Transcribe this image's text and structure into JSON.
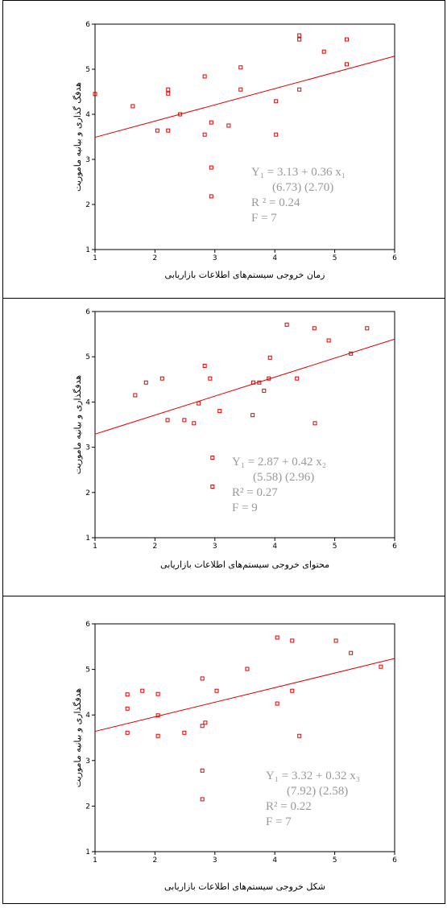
{
  "chart_data": [
    {
      "type": "scatter",
      "color": "#e00000",
      "x_label": "زمان خروجی سیستم‌های اطلاعات بازاریابی",
      "y_label": "هدفگ گذاری و بیانیه ماموریت",
      "xlim": [
        1,
        6
      ],
      "ylim": [
        1,
        6
      ],
      "xticks": [
        1,
        2,
        3,
        4,
        5,
        6
      ],
      "yticks": [
        1,
        2,
        3,
        4,
        5,
        6
      ],
      "x": [
        1.0,
        1.63,
        2.04,
        2.22,
        2.22,
        2.22,
        2.42,
        2.83,
        2.83,
        2.94,
        2.94,
        2.94,
        3.23,
        3.43,
        3.43,
        4.02,
        4.02,
        4.41,
        4.41,
        4.41,
        4.82,
        5.2,
        5.2
      ],
      "values": [
        4.45,
        4.18,
        3.64,
        4.55,
        4.46,
        3.64,
        4.0,
        4.84,
        3.55,
        3.82,
        2.82,
        2.18,
        3.75,
        5.04,
        4.55,
        4.29,
        3.55,
        5.75,
        5.66,
        4.55,
        5.39,
        5.66,
        5.11
      ],
      "trendline": {
        "intercept": 3.13,
        "slope": 0.36
      },
      "annotations": [
        "Y₁ = 3.13 + 0.36 x₁",
        "(6.73)    (2.70)",
        "R ² = 0.24",
        "F = 7"
      ]
    },
    {
      "type": "scatter",
      "color": "#e00000",
      "x_label": "محتوای خروجی سیستم‌های اطلاعات بازاریابی",
      "y_label": "هدفگذاری و بیانیه ماموریت",
      "xlim": [
        1,
        6
      ],
      "ylim": [
        1,
        6
      ],
      "xticks": [
        1,
        2,
        3,
        4,
        5,
        6
      ],
      "yticks": [
        1,
        2,
        3,
        4,
        5,
        6
      ],
      "x": [
        1.67,
        1.85,
        2.12,
        2.21,
        2.49,
        2.65,
        2.73,
        2.83,
        2.92,
        2.96,
        2.96,
        3.08,
        3.63,
        3.64,
        3.74,
        3.82,
        3.9,
        3.92,
        4.2,
        4.37,
        4.66,
        4.67,
        4.9,
        5.27,
        5.54
      ],
      "values": [
        4.15,
        4.43,
        4.52,
        3.6,
        3.6,
        3.53,
        3.97,
        4.8,
        4.52,
        2.77,
        2.13,
        3.8,
        3.71,
        4.43,
        4.43,
        4.25,
        4.52,
        4.98,
        5.71,
        4.52,
        5.63,
        3.53,
        5.36,
        5.07,
        5.63
      ],
      "trendline": {
        "intercept": 2.87,
        "slope": 0.42
      },
      "annotations": [
        "Y₁ = 2.87 + 0.42 x₂",
        "(5.58)    (2.96)",
        "R² = 0.27",
        "F = 9"
      ]
    },
    {
      "type": "scatter",
      "color": "#e00000",
      "x_label": "شکل خروجی سیستم‌های اطلاعات بازاریابی",
      "y_label": "هدفگذاری و بیانیه ماموریت",
      "xlim": [
        1,
        6
      ],
      "ylim": [
        1,
        6
      ],
      "xticks": [
        1,
        2,
        3,
        4,
        5,
        6
      ],
      "yticks": [
        1,
        2,
        3,
        4,
        5,
        6
      ],
      "x": [
        1.54,
        1.54,
        1.54,
        1.79,
        2.05,
        2.05,
        2.05,
        2.49,
        2.79,
        2.79,
        2.79,
        2.79,
        2.84,
        3.03,
        3.54,
        4.04,
        4.04,
        4.29,
        4.29,
        4.41,
        5.02,
        5.27,
        5.77
      ],
      "values": [
        4.45,
        4.14,
        3.61,
        4.53,
        4.46,
        3.99,
        3.54,
        3.61,
        4.8,
        3.76,
        2.78,
        2.15,
        3.83,
        4.53,
        5.01,
        5.7,
        4.25,
        5.63,
        4.53,
        3.54,
        5.63,
        5.36,
        5.06
      ],
      "trendline": {
        "intercept": 3.32,
        "slope": 0.32
      },
      "annotations": [
        "Y₁ = 3.32 + 0.32 x₃",
        "(7.92)    (2.58)",
        "R² = 0.22",
        "F = 7"
      ]
    }
  ]
}
